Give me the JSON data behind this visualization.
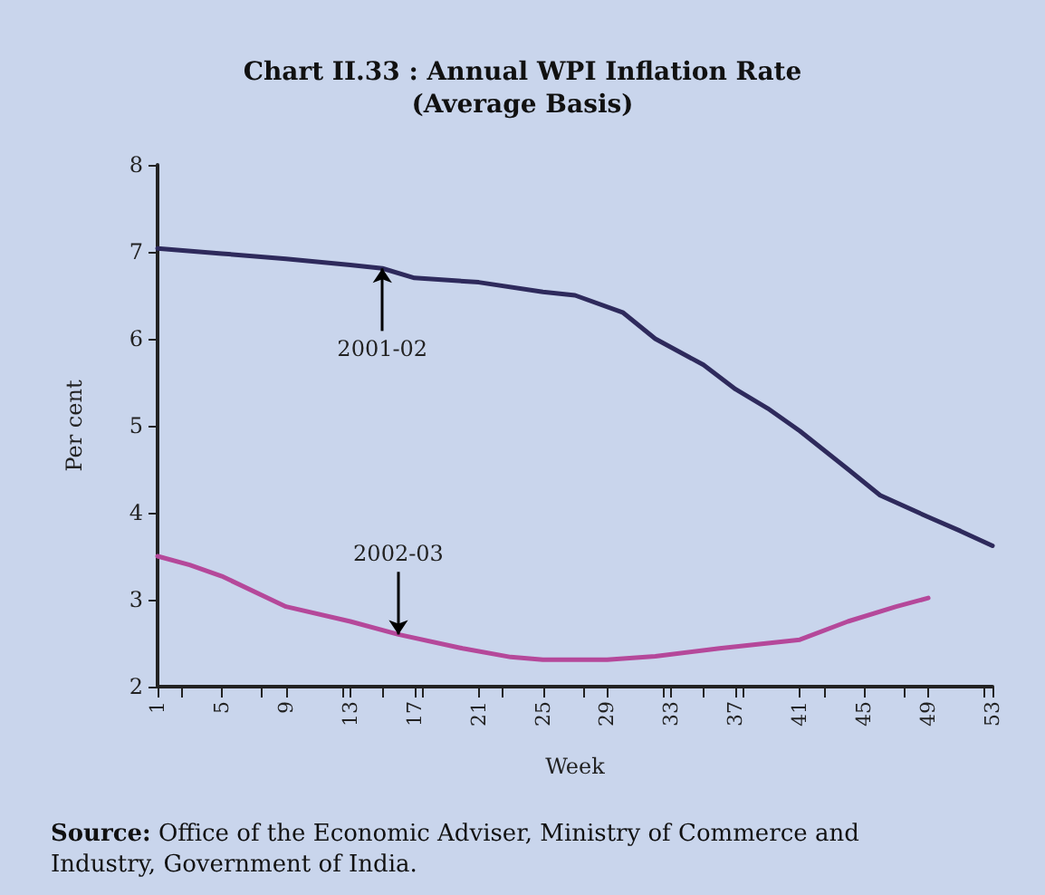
{
  "chart_data": {
    "type": "line",
    "title": "Chart II.33 : Annual WPI Inflation Rate",
    "subtitle": "(Average Basis)",
    "xlabel": "Week",
    "ylabel": "Per cent",
    "xlim": [
      1,
      53
    ],
    "xticks": [
      1,
      5,
      9,
      13,
      17,
      21,
      25,
      29,
      33,
      37,
      41,
      45,
      49,
      53
    ],
    "ylim": [
      2,
      8
    ],
    "yticks": [
      2,
      3,
      4,
      5,
      6,
      7,
      8
    ],
    "series": [
      {
        "name": "2001-02",
        "color": "#2e2a5c",
        "x": [
          1,
          5,
          9,
          13,
          15,
          17,
          21,
          25,
          27,
          30,
          32,
          35,
          37,
          39,
          41,
          44,
          46,
          49,
          51,
          53
        ],
        "values": [
          7.04,
          6.98,
          6.92,
          6.85,
          6.81,
          6.7,
          6.65,
          6.54,
          6.5,
          6.3,
          6.0,
          5.7,
          5.42,
          5.2,
          4.94,
          4.5,
          4.2,
          3.95,
          3.79,
          3.62
        ]
      },
      {
        "name": "2002-03",
        "color": "#b5489a",
        "x": [
          1,
          3,
          5,
          9,
          13,
          16,
          20,
          23,
          25,
          29,
          32,
          36,
          41,
          44,
          47,
          49
        ],
        "values": [
          3.5,
          3.4,
          3.27,
          2.92,
          2.75,
          2.6,
          2.44,
          2.34,
          2.31,
          2.31,
          2.35,
          2.44,
          2.54,
          2.75,
          2.92,
          3.02
        ]
      }
    ],
    "annotations": [
      "Source: Office of the Economic Adviser, Ministry of Commerce and Industry, Government of India."
    ],
    "grid": false,
    "legend": false,
    "marker": "none",
    "line_style": "solid"
  }
}
